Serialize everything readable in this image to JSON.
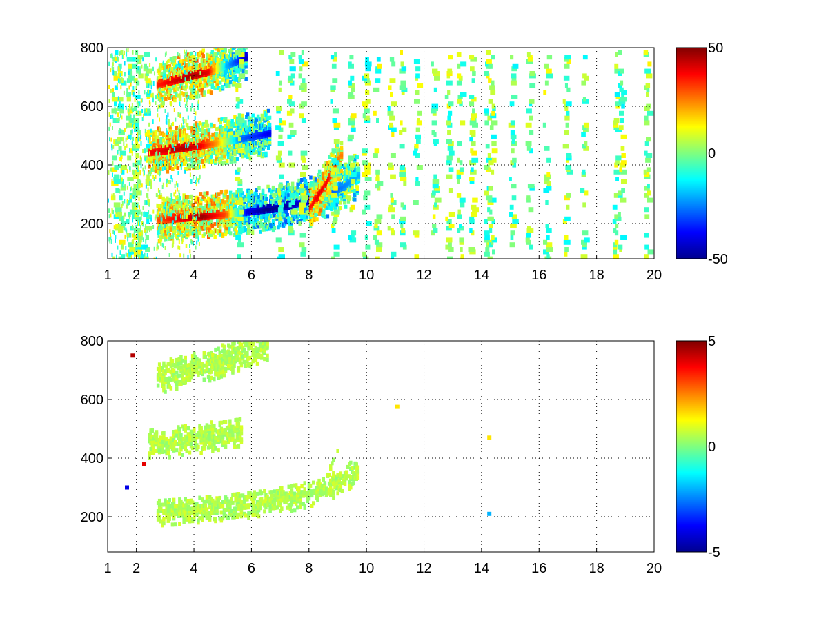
{
  "chart_data": [
    {
      "type": "heatmap",
      "title": "",
      "xlabel": "",
      "ylabel": "",
      "xlim": [
        1,
        20
      ],
      "ylim": [
        80,
        800
      ],
      "xticks": [
        "1",
        "2",
        "4",
        "6",
        "8",
        "10",
        "12",
        "14",
        "16",
        "18",
        "20"
      ],
      "xtick_values": [
        1,
        2,
        4,
        6,
        8,
        10,
        12,
        14,
        16,
        18,
        20
      ],
      "yticks": [
        "200",
        "400",
        "600",
        "800"
      ],
      "ytick_values": [
        200,
        400,
        600,
        800
      ],
      "grid": true,
      "colormap": "jet",
      "colorbar": {
        "range": [
          -50,
          50
        ],
        "labels": [
          "50",
          "0",
          "-50"
        ],
        "label_values": [
          50,
          0,
          -50
        ],
        "placement": "right"
      },
      "ridges": [
        {
          "x": [
            2.7,
            3.3,
            3.9,
            4.5,
            5.1,
            5.8
          ],
          "y": [
            675,
            690,
            705,
            720,
            740,
            770
          ],
          "z": [
            35,
            42,
            48,
            40,
            -20,
            -45
          ]
        },
        {
          "x": [
            2.4,
            3.0,
            3.6,
            4.2,
            4.8,
            5.6,
            6.6
          ],
          "y": [
            445,
            452,
            460,
            468,
            478,
            492,
            510
          ],
          "z": [
            38,
            42,
            46,
            40,
            22,
            -28,
            -40
          ]
        },
        {
          "x": [
            2.7,
            3.5,
            4.3,
            5.1,
            5.8,
            6.5,
            7.2,
            7.9,
            8.6,
            9.2,
            9.7
          ],
          "y": [
            215,
            220,
            227,
            234,
            242,
            250,
            262,
            278,
            300,
            330,
            368
          ],
          "z": [
            30,
            40,
            48,
            30,
            -40,
            -50,
            -48,
            -40,
            -30,
            -25,
            -20
          ]
        },
        {
          "x": [
            8.0,
            8.3,
            8.6,
            8.9,
            9.1
          ],
          "y": [
            255,
            300,
            345,
            395,
            440
          ],
          "z": [
            35,
            40,
            38,
            30,
            25
          ]
        }
      ],
      "noise_columns": [
        1.2,
        1.4,
        1.7,
        1.9,
        2.0,
        2.3,
        5.5,
        6.9,
        7.3,
        7.7,
        8.8,
        9.4,
        9.9,
        10.3,
        10.8,
        11.2,
        11.7,
        12.3,
        12.8,
        13.2,
        13.6,
        14.15,
        14.3,
        15.0,
        15.6,
        16.2,
        16.9,
        17.5,
        18.6,
        18.8,
        19.7
      ]
    },
    {
      "type": "heatmap",
      "title": "",
      "xlabel": "",
      "ylabel": "",
      "xlim": [
        1,
        20
      ],
      "ylim": [
        80,
        800
      ],
      "xticks": [
        "1",
        "2",
        "4",
        "6",
        "8",
        "10",
        "12",
        "14",
        "16",
        "18",
        "20"
      ],
      "xtick_values": [
        1,
        2,
        4,
        6,
        8,
        10,
        12,
        14,
        16,
        18,
        20
      ],
      "yticks": [
        "200",
        "400",
        "600",
        "800"
      ],
      "ytick_values": [
        200,
        400,
        600,
        800
      ],
      "grid": true,
      "colormap": "jet",
      "colorbar": {
        "range": [
          -5,
          5
        ],
        "labels": [
          "5",
          "0",
          "-5"
        ],
        "label_values": [
          5,
          0,
          -5
        ],
        "placement": "right"
      },
      "regions": [
        {
          "x": [
            2.7,
            3.3,
            3.9,
            4.5,
            5.1,
            5.8,
            6.5
          ],
          "y": [
            675,
            690,
            705,
            720,
            740,
            765,
            790
          ],
          "z": 0.5,
          "spread": 55
        },
        {
          "x": [
            2.4,
            3.0,
            3.6,
            4.2,
            4.8,
            5.6
          ],
          "y": [
            445,
            452,
            460,
            468,
            478,
            492
          ],
          "z": 0.5,
          "spread": 50
        },
        {
          "x": [
            2.7,
            3.5,
            4.3,
            5.1,
            5.8,
            6.5,
            7.2,
            7.9,
            8.6,
            9.2,
            9.7
          ],
          "y": [
            215,
            220,
            227,
            234,
            242,
            250,
            262,
            278,
            300,
            330,
            368
          ],
          "z": 0.5,
          "spread": 45
        },
        {
          "x": [
            8.6,
            8.8,
            9.0
          ],
          "y": [
            345,
            390,
            440
          ],
          "z": 0.5,
          "spread": 10
        }
      ],
      "spots": [
        {
          "x": 14.2,
          "y": 210,
          "z": -2.0
        },
        {
          "x": 14.2,
          "y": 470,
          "z": 1.5
        },
        {
          "x": 11.0,
          "y": 575,
          "z": 1.5
        },
        {
          "x": 1.8,
          "y": 750,
          "z": 4.5
        },
        {
          "x": 1.6,
          "y": 300,
          "z": -4.0
        },
        {
          "x": 2.2,
          "y": 380,
          "z": 4.0
        }
      ]
    }
  ]
}
